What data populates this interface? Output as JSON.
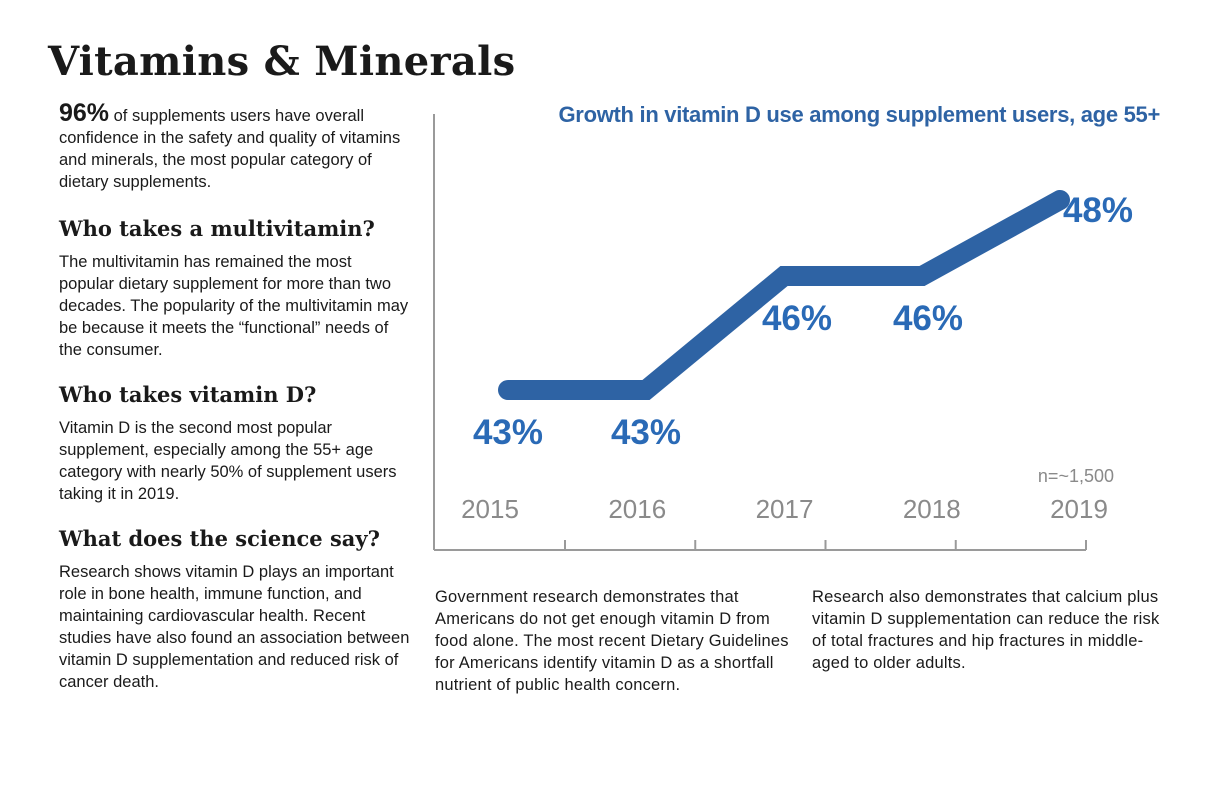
{
  "page": {
    "title": "Vitamins & Minerals"
  },
  "intro": {
    "stat": "96%",
    "text": " of supplements users have overall confidence in the safety and quality of vitamins and minerals, the most popular category of dietary supplements."
  },
  "sections": [
    {
      "heading": "Who takes a multivitamin?",
      "body": "The multivitamin has remained the most popular dietary supplement for more than two decades. The popularity of the multivitamin may be because it meets the “functional” needs of the consumer."
    },
    {
      "heading": "Who takes vitamin D?",
      "body": "Vitamin D is the second most popular supplement, especially among the 55+ age category with nearly 50% of supplement users taking it in 2019."
    },
    {
      "heading": "What does the science say?",
      "body": "Research shows vitamin D plays an important role in bone health, immune function, and maintaining cardiovascular health. Recent studies have also found an association between vitamin D supplementation and reduced risk of cancer death."
    }
  ],
  "notes": {
    "middle": "Government research demonstrates that Americans do not get enough vitamin D from food alone. The most recent Dietary Guidelines for Americans identify vitamin D as a shortfall nutrient of public health concern.",
    "right": "Research also demonstrates that calcium plus vitamin D supplementation can reduce the risk of total fractures and hip fractures in middle-aged to older adults."
  },
  "chart_data": {
    "type": "line",
    "title": "Growth in vitamin D use among supplement users, age 55+",
    "categories": [
      "2015",
      "2016",
      "2017",
      "2018",
      "2019"
    ],
    "values": [
      43,
      43,
      46,
      46,
      48
    ],
    "data_labels": [
      "43%",
      "43%",
      "46%",
      "46%",
      "48%"
    ],
    "annotation": "n=~1,500",
    "ylim": [
      43,
      48
    ],
    "grid": false,
    "colors": {
      "line": "#2e63a4",
      "title": "#2e63a4",
      "labels": "#2a6ab6",
      "tick_labels": "#8a8a8a",
      "axis": "#9a9a9a",
      "annotation": "#8a8a8a"
    }
  }
}
